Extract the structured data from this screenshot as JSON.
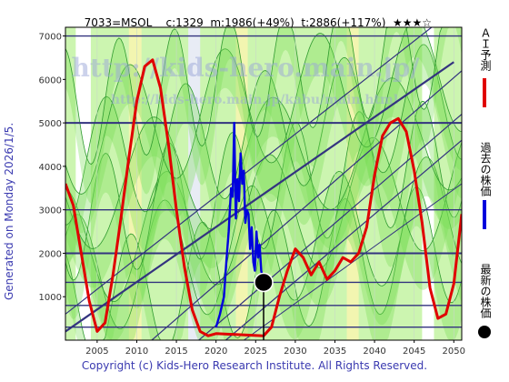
{
  "header": {
    "code": "7033=MSOL",
    "current": "c:1329",
    "mid": "m:1986(+49%)",
    "target": "t:2886(+117%)",
    "stars": "★★★☆"
  },
  "side_note": "Generated on Monday 2026/1/5.",
  "watermark": {
    "line1": "http://kids-hero.main.jp/",
    "line2": "http://kids-hero.main.jp/kabu/main.html"
  },
  "footer": "Copyright (c) Kids-Hero Research Institute. All Rights Reserved.",
  "legend": {
    "ai": "ＡＩ予測",
    "past": "過去の株価",
    "latest": "最新の株価"
  },
  "colors": {
    "prediction": "#e00000",
    "past": "#0000dd",
    "latest": "#000000",
    "band_light": "#ccf5b0",
    "band_dark": "#77dd55",
    "band_yellow": "#f2f5b0",
    "lines": "#33337f"
  },
  "chart_data": {
    "type": "line",
    "x_range": [
      2001,
      2051
    ],
    "y_range": [
      0,
      7200
    ],
    "x_ticks": [
      2005,
      2010,
      2015,
      2020,
      2025,
      2030,
      2035,
      2040,
      2045,
      2050
    ],
    "y_ticks": [
      1000,
      2000,
      3000,
      4000,
      5000,
      6000,
      7000
    ],
    "hlines": [
      300,
      800,
      1330,
      2000,
      3000,
      5000,
      7000
    ],
    "latest": {
      "year": 2026.0,
      "value": 1329
    },
    "series": [
      {
        "name": "ＡＩ予測",
        "color": "#e00000",
        "x": [
          2001,
          2002,
          2003,
          2004,
          2005,
          2006,
          2007,
          2008,
          2009,
          2010,
          2011,
          2012,
          2013,
          2014,
          2015,
          2016,
          2017,
          2018,
          2019,
          2020,
          2026,
          2027,
          2028,
          2029,
          2030,
          2031,
          2032,
          2033,
          2034,
          2035,
          2036,
          2037,
          2038,
          2039,
          2040,
          2041,
          2042,
          2043,
          2044,
          2045,
          2046,
          2047,
          2048,
          2049,
          2050,
          2051
        ],
        "y": [
          3600,
          3100,
          2000,
          900,
          200,
          400,
          1500,
          2800,
          4200,
          5500,
          6300,
          6450,
          5800,
          4500,
          3000,
          1700,
          700,
          200,
          100,
          150,
          100,
          300,
          1000,
          1600,
          2100,
          1900,
          1500,
          1800,
          1400,
          1600,
          1900,
          1800,
          2000,
          2600,
          3800,
          4700,
          5000,
          5100,
          4800,
          3900,
          2700,
          1200,
          500,
          600,
          1300,
          2900
        ]
      },
      {
        "name": "過去の株価",
        "color": "#0000dd",
        "x": [
          2020.0,
          2020.5,
          2021.0,
          2021.3,
          2021.6,
          2021.9,
          2022.1,
          2022.3,
          2022.5,
          2022.7,
          2022.9,
          2023.1,
          2023.3,
          2023.5,
          2023.7,
          2023.9,
          2024.1,
          2024.3,
          2024.5,
          2024.7,
          2024.9,
          2025.1,
          2025.3,
          2025.5,
          2025.7,
          2026.0
        ],
        "y": [
          300,
          600,
          1000,
          1800,
          2500,
          3500,
          3300,
          5000,
          2800,
          3700,
          3200,
          4300,
          3600,
          3900,
          2700,
          3000,
          2900,
          2100,
          2600,
          1800,
          1600,
          2500,
          1900,
          2200,
          1600,
          1329
        ]
      }
    ]
  }
}
